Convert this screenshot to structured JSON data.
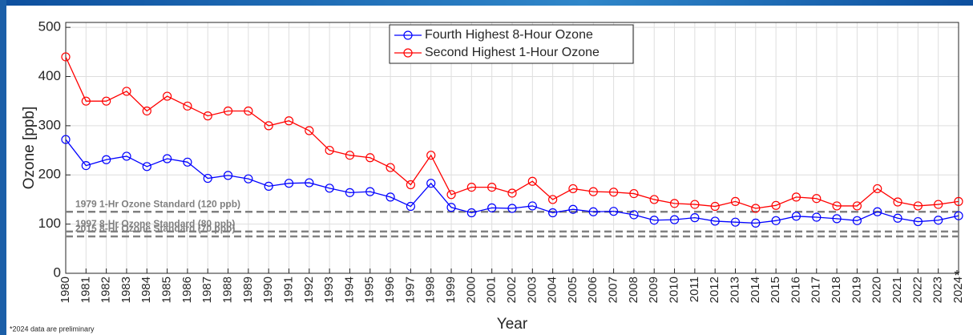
{
  "chart_data": {
    "type": "line",
    "xlabel": "Year",
    "ylabel": "Ozone [ppb]",
    "categories": [
      "1980",
      "1981",
      "1982",
      "1983",
      "1984",
      "1985",
      "1986",
      "1987",
      "1988",
      "1989",
      "1990",
      "1991",
      "1992",
      "1993",
      "1994",
      "1995",
      "1996",
      "1997",
      "1998",
      "1999",
      "2000",
      "2001",
      "2002",
      "2003",
      "2004",
      "2005",
      "2006",
      "2007",
      "2008",
      "2009",
      "2010",
      "2011",
      "2012",
      "2013",
      "2014",
      "2015",
      "2016",
      "2017",
      "2018",
      "2019",
      "2020",
      "2021",
      "2022",
      "2023",
      "2024"
    ],
    "series": [
      {
        "name": "Fourth Highest 8-Hour Ozone",
        "color": "#0000ff",
        "values": [
          272,
          219,
          231,
          238,
          217,
          233,
          226,
          193,
          199,
          192,
          177,
          183,
          184,
          173,
          164,
          166,
          155,
          136,
          183,
          134,
          123,
          133,
          132,
          137,
          123,
          130,
          125,
          126,
          119,
          108,
          109,
          113,
          106,
          104,
          102,
          107,
          116,
          114,
          111,
          107,
          125,
          112,
          105,
          108,
          117
        ]
      },
      {
        "name": "Second Highest 1-Hour Ozone",
        "color": "#ff0000",
        "values": [
          440,
          350,
          350,
          370,
          330,
          360,
          340,
          320,
          330,
          330,
          300,
          310,
          290,
          250,
          240,
          235,
          215,
          180,
          240,
          160,
          175,
          175,
          163,
          187,
          150,
          172,
          166,
          165,
          162,
          150,
          142,
          140,
          136,
          146,
          132,
          138,
          155,
          152,
          137,
          137,
          172,
          145,
          137,
          140,
          146
        ]
      }
    ],
    "ylim": [
      0,
      510
    ],
    "yticks": [
      0,
      100,
      200,
      300,
      400,
      500
    ],
    "grid": true,
    "legend": "upper center",
    "reference_lines": [
      {
        "value": 125,
        "label": "1979 1-Hr Ozone Standard (120 ppb)"
      },
      {
        "value": 85,
        "label": "1997 8-Hr Ozone Standard (80 ppb)"
      },
      {
        "value": 75,
        "label": "2015 8-Hr Ozone Standard (70 ppb)"
      }
    ],
    "reference_color": "#808080",
    "last_tick_marker": "*",
    "footnote": "*2024 data are preliminary"
  }
}
